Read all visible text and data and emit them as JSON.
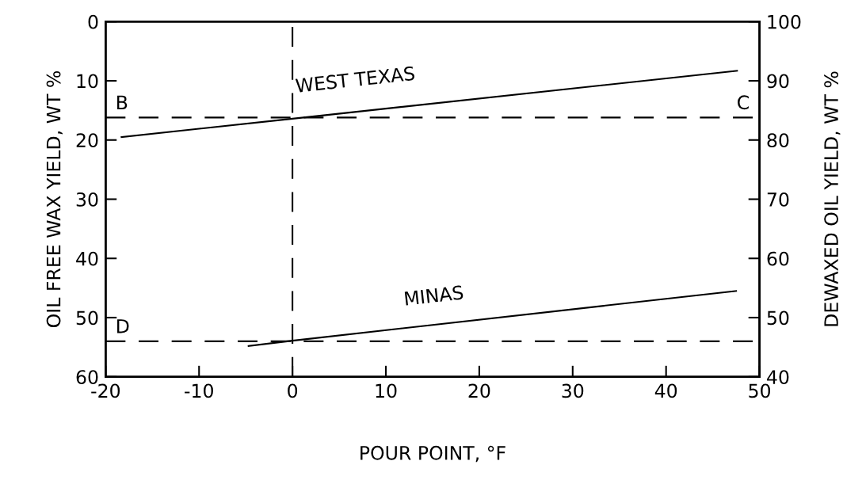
{
  "chart_data": {
    "type": "line",
    "xlabel": "POUR POINT, °F",
    "ylabel": "OIL FREE WAX YIELD, WT %",
    "y2label": "DEWAXED OIL YIELD, WT %",
    "xlim": [
      -20,
      50
    ],
    "xticks": [
      -20,
      -10,
      0,
      10,
      20,
      30,
      40,
      50
    ],
    "ylim": [
      60,
      0
    ],
    "yticks": [
      0,
      10,
      20,
      30,
      40,
      50,
      60
    ],
    "y2lim": [
      40,
      100
    ],
    "y2ticks": [
      40,
      50,
      60,
      70,
      80,
      90,
      100
    ],
    "series": [
      {
        "name": "WEST TEXAS",
        "color": "#000000",
        "x": [
          -18.3,
          0,
          47.6
        ],
        "values": [
          19.5,
          16.4,
          8.3
        ]
      },
      {
        "name": "MINAS",
        "color": "#000000",
        "x": [
          -4.7,
          0,
          47.5
        ],
        "values": [
          54.8,
          53.9,
          45.5
        ]
      }
    ],
    "ref_lines": [
      {
        "axis": "y",
        "value": 16.2,
        "color": "#000000",
        "line_style": "dashed"
      },
      {
        "axis": "y",
        "value": 54,
        "color": "#000000",
        "line_style": "dashed"
      },
      {
        "axis": "x",
        "value": 0,
        "color": "#000000",
        "line_style": "dashed"
      }
    ],
    "annotations": [
      "B",
      "C",
      "D"
    ],
    "legend": false,
    "marker": "none",
    "line_style": "solid"
  }
}
